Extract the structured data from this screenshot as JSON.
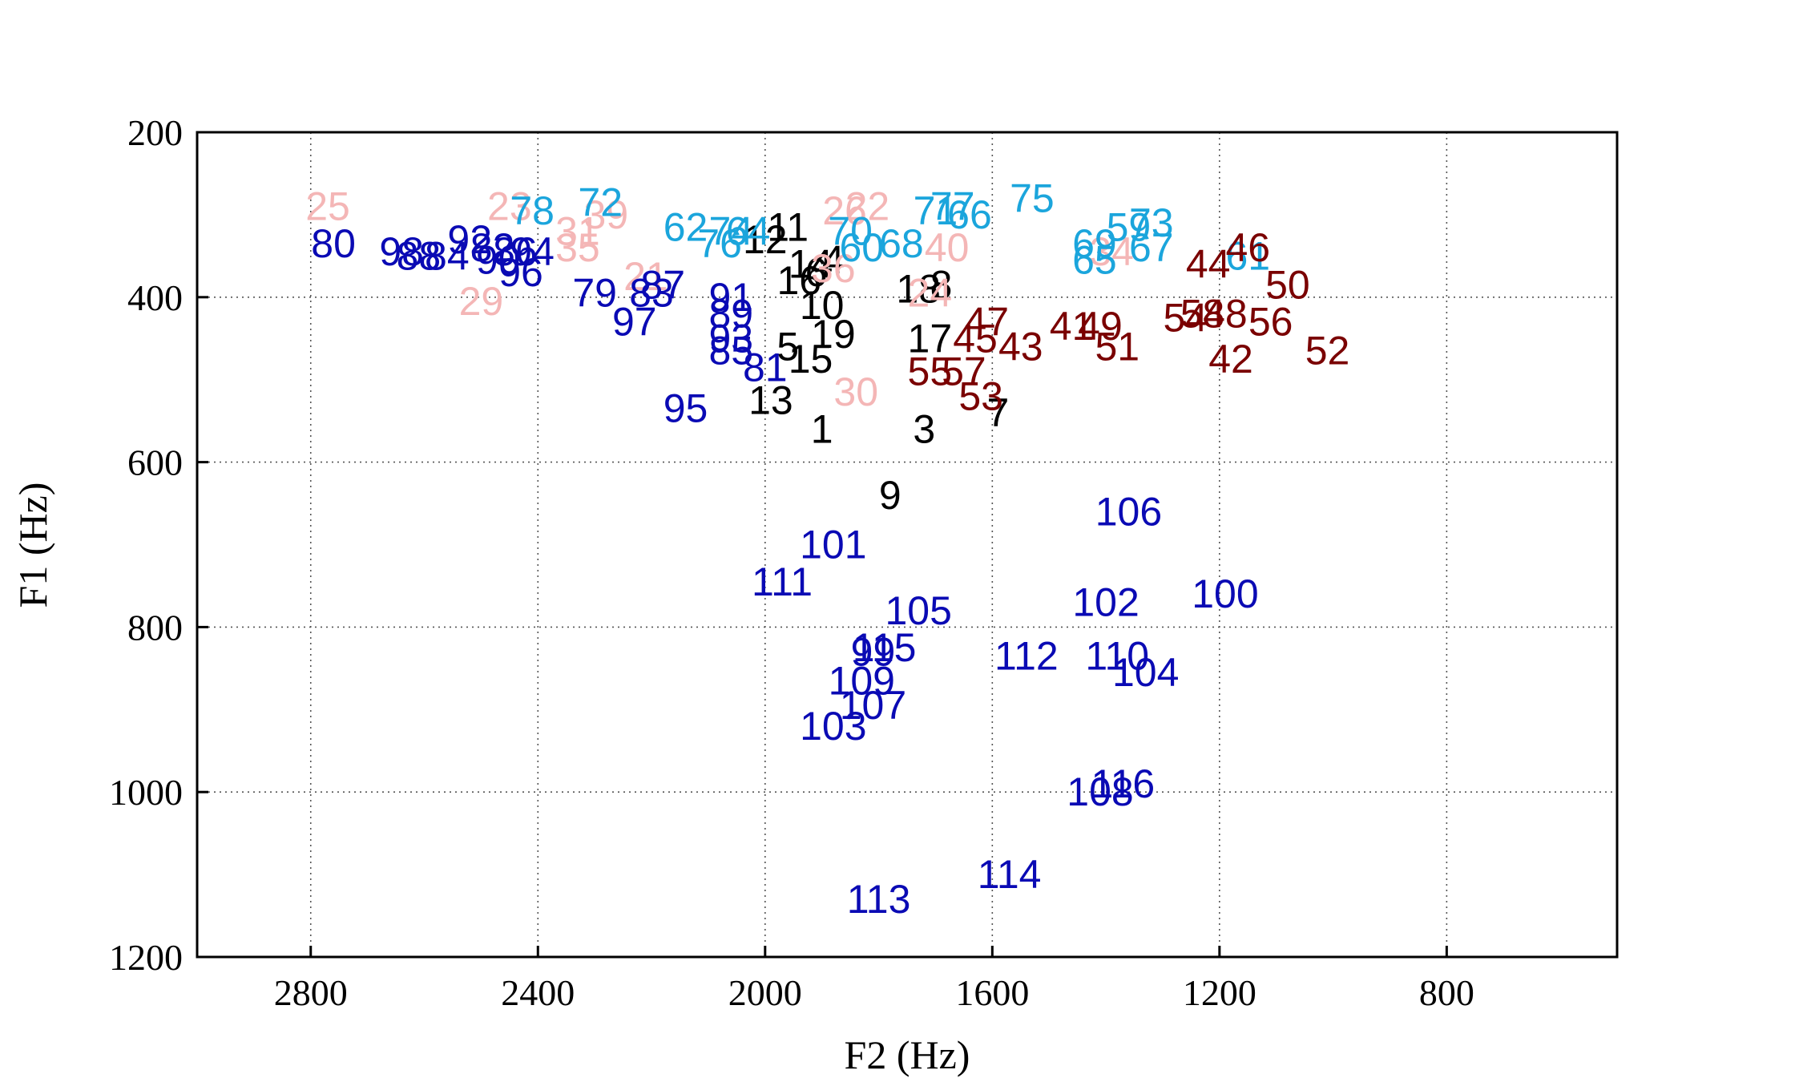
{
  "chart_data": {
    "type": "scatter",
    "xlabel": "F2 (Hz)",
    "ylabel": "F1 (Hz)",
    "xlim": [
      3000,
      500
    ],
    "ylim": [
      200,
      1200
    ],
    "x_reversed": true,
    "y_reversed": true,
    "xticks": [
      "2800",
      "2400",
      "2000",
      "1600",
      "1200",
      "800"
    ],
    "xtick_values": [
      2800,
      2400,
      2000,
      1600,
      1200,
      800
    ],
    "yticks": [
      "200",
      "400",
      "600",
      "800",
      "1000",
      "1200"
    ],
    "ytick_values": [
      200,
      400,
      600,
      800,
      1000,
      1200
    ],
    "grid": true,
    "colors": {
      "black": "#000000",
      "pink": "#f4b6b6",
      "light_blue": "#1ba5dc",
      "dark_blue": "#0a0ab4",
      "dark_red": "#7a0000"
    },
    "series": [
      {
        "color": "#000000",
        "points": [
          {
            "label": "1",
            "x": 1900,
            "y": 560
          },
          {
            "label": "3",
            "x": 1720,
            "y": 560
          },
          {
            "label": "7",
            "x": 1590,
            "y": 540
          },
          {
            "label": "9",
            "x": 1780,
            "y": 640
          },
          {
            "label": "10",
            "x": 1900,
            "y": 410
          },
          {
            "label": "13",
            "x": 1990,
            "y": 525
          },
          {
            "label": "15",
            "x": 1920,
            "y": 475
          },
          {
            "label": "5",
            "x": 1960,
            "y": 460
          },
          {
            "label": "19",
            "x": 1880,
            "y": 445
          },
          {
            "label": "17",
            "x": 1710,
            "y": 450
          },
          {
            "label": "18",
            "x": 1730,
            "y": 390
          },
          {
            "label": "8",
            "x": 1690,
            "y": 385
          },
          {
            "label": "11",
            "x": 1960,
            "y": 315
          },
          {
            "label": "12",
            "x": 2000,
            "y": 330
          },
          {
            "label": "14",
            "x": 1920,
            "y": 360
          },
          {
            "label": "16",
            "x": 1940,
            "y": 380
          },
          {
            "label": "6",
            "x": 1910,
            "y": 370
          },
          {
            "label": "4",
            "x": 1880,
            "y": 355
          }
        ]
      },
      {
        "color": "#f4b6b6",
        "points": [
          {
            "label": "25",
            "x": 2770,
            "y": 290
          },
          {
            "label": "23",
            "x": 2450,
            "y": 290
          },
          {
            "label": "31",
            "x": 2330,
            "y": 320
          },
          {
            "label": "35",
            "x": 2330,
            "y": 340
          },
          {
            "label": "29",
            "x": 2500,
            "y": 405
          },
          {
            "label": "21",
            "x": 2210,
            "y": 375
          },
          {
            "label": "26",
            "x": 1860,
            "y": 295
          },
          {
            "label": "22",
            "x": 1820,
            "y": 290
          },
          {
            "label": "40",
            "x": 1680,
            "y": 340
          },
          {
            "label": "24",
            "x": 1710,
            "y": 395
          },
          {
            "label": "30",
            "x": 1840,
            "y": 515
          },
          {
            "label": "36",
            "x": 1880,
            "y": 365
          },
          {
            "label": "34",
            "x": 1390,
            "y": 345
          },
          {
            "label": "39",
            "x": 2280,
            "y": 300
          }
        ]
      },
      {
        "color": "#1ba5dc",
        "points": [
          {
            "label": "78",
            "x": 2410,
            "y": 295
          },
          {
            "label": "72",
            "x": 2290,
            "y": 285
          },
          {
            "label": "62",
            "x": 2140,
            "y": 315
          },
          {
            "label": "76",
            "x": 2080,
            "y": 335
          },
          {
            "label": "74",
            "x": 2060,
            "y": 320
          },
          {
            "label": "64",
            "x": 2030,
            "y": 320
          },
          {
            "label": "70",
            "x": 1850,
            "y": 320
          },
          {
            "label": "60",
            "x": 1830,
            "y": 340
          },
          {
            "label": "68",
            "x": 1760,
            "y": 335
          },
          {
            "label": "71",
            "x": 1700,
            "y": 295
          },
          {
            "label": "77",
            "x": 1670,
            "y": 290
          },
          {
            "label": "66",
            "x": 1640,
            "y": 300
          },
          {
            "label": "75",
            "x": 1530,
            "y": 280
          },
          {
            "label": "69",
            "x": 1420,
            "y": 335
          },
          {
            "label": "65",
            "x": 1420,
            "y": 355
          },
          {
            "label": "59",
            "x": 1360,
            "y": 315
          },
          {
            "label": "73",
            "x": 1320,
            "y": 310
          },
          {
            "label": "67",
            "x": 1320,
            "y": 340
          },
          {
            "label": "61",
            "x": 1150,
            "y": 350
          }
        ]
      },
      {
        "color": "#0a0ab4",
        "points": [
          {
            "label": "80",
            "x": 2760,
            "y": 335
          },
          {
            "label": "98",
            "x": 2640,
            "y": 345
          },
          {
            "label": "88",
            "x": 2610,
            "y": 350
          },
          {
            "label": "92",
            "x": 2520,
            "y": 330
          },
          {
            "label": "84",
            "x": 2560,
            "y": 350
          },
          {
            "label": "82",
            "x": 2480,
            "y": 340
          },
          {
            "label": "90",
            "x": 2470,
            "y": 355
          },
          {
            "label": "86",
            "x": 2440,
            "y": 345
          },
          {
            "label": "94",
            "x": 2410,
            "y": 345
          },
          {
            "label": "96",
            "x": 2430,
            "y": 370
          },
          {
            "label": "79",
            "x": 2300,
            "y": 395
          },
          {
            "label": "83",
            "x": 2200,
            "y": 395
          },
          {
            "label": "87",
            "x": 2180,
            "y": 385
          },
          {
            "label": "97",
            "x": 2230,
            "y": 430
          },
          {
            "label": "91",
            "x": 2060,
            "y": 400
          },
          {
            "label": "89",
            "x": 2060,
            "y": 420
          },
          {
            "label": "93",
            "x": 2060,
            "y": 450
          },
          {
            "label": "85",
            "x": 2060,
            "y": 465
          },
          {
            "label": "81",
            "x": 2000,
            "y": 485
          },
          {
            "label": "95",
            "x": 2140,
            "y": 535
          },
          {
            "label": "101",
            "x": 1880,
            "y": 700
          },
          {
            "label": "111",
            "x": 1970,
            "y": 745
          },
          {
            "label": "105",
            "x": 1730,
            "y": 780
          },
          {
            "label": "115",
            "x": 1790,
            "y": 825
          },
          {
            "label": "99",
            "x": 1810,
            "y": 830
          },
          {
            "label": "109",
            "x": 1830,
            "y": 865
          },
          {
            "label": "107",
            "x": 1810,
            "y": 895
          },
          {
            "label": "103",
            "x": 1880,
            "y": 920
          },
          {
            "label": "112",
            "x": 1540,
            "y": 835
          },
          {
            "label": "106",
            "x": 1360,
            "y": 660
          },
          {
            "label": "102",
            "x": 1400,
            "y": 770
          },
          {
            "label": "100",
            "x": 1190,
            "y": 760
          },
          {
            "label": "110",
            "x": 1380,
            "y": 835
          },
          {
            "label": "104",
            "x": 1330,
            "y": 855
          },
          {
            "label": "108",
            "x": 1410,
            "y": 1000
          },
          {
            "label": "116",
            "x": 1370,
            "y": 990
          },
          {
            "label": "113",
            "x": 1800,
            "y": 1130
          },
          {
            "label": "114",
            "x": 1570,
            "y": 1100
          }
        ]
      },
      {
        "color": "#7a0000",
        "points": [
          {
            "label": "46",
            "x": 1150,
            "y": 340
          },
          {
            "label": "44",
            "x": 1220,
            "y": 360
          },
          {
            "label": "50",
            "x": 1080,
            "y": 385
          },
          {
            "label": "52",
            "x": 1010,
            "y": 465
          },
          {
            "label": "56",
            "x": 1110,
            "y": 430
          },
          {
            "label": "42",
            "x": 1180,
            "y": 475
          },
          {
            "label": "48",
            "x": 1190,
            "y": 420
          },
          {
            "label": "58",
            "x": 1230,
            "y": 420
          },
          {
            "label": "54",
            "x": 1260,
            "y": 425
          },
          {
            "label": "49",
            "x": 1410,
            "y": 435
          },
          {
            "label": "41",
            "x": 1460,
            "y": 435
          },
          {
            "label": "51",
            "x": 1380,
            "y": 460
          },
          {
            "label": "47",
            "x": 1610,
            "y": 430
          },
          {
            "label": "45",
            "x": 1630,
            "y": 450
          },
          {
            "label": "43",
            "x": 1550,
            "y": 460
          },
          {
            "label": "55",
            "x": 1710,
            "y": 490
          },
          {
            "label": "57",
            "x": 1650,
            "y": 490
          },
          {
            "label": "53",
            "x": 1620,
            "y": 520
          }
        ]
      }
    ]
  }
}
